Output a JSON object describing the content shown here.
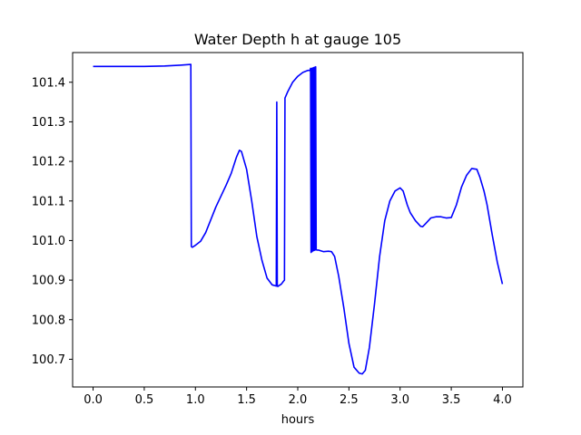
{
  "chart_data": {
    "type": "line",
    "title": "Water Depth h at gauge 105",
    "xlabel": "hours",
    "ylabel": "",
    "xlim": [
      -0.2,
      4.2
    ],
    "ylim": [
      100.63,
      101.475
    ],
    "xticks": [
      0.0,
      0.5,
      1.0,
      1.5,
      2.0,
      2.5,
      3.0,
      3.5,
      4.0
    ],
    "xtick_labels": [
      "0.0",
      "0.5",
      "1.0",
      "1.5",
      "2.0",
      "2.5",
      "3.0",
      "3.5",
      "4.0"
    ],
    "yticks": [
      100.7,
      100.8,
      100.9,
      101.0,
      101.1,
      101.2,
      101.3,
      101.4
    ],
    "ytick_labels": [
      "100.7",
      "100.8",
      "100.9",
      "101.0",
      "101.1",
      "101.2",
      "101.3",
      "101.4"
    ],
    "grid": false,
    "series": [
      {
        "color": "#0000ff",
        "x": [
          0.0,
          0.5,
          0.7,
          0.85,
          0.955,
          0.96,
          0.97,
          1.0,
          1.05,
          1.1,
          1.2,
          1.3,
          1.35,
          1.4,
          1.43,
          1.45,
          1.5,
          1.55,
          1.6,
          1.65,
          1.7,
          1.75,
          1.79,
          1.795,
          1.8,
          1.805,
          1.84,
          1.86,
          1.87,
          1.875,
          1.9,
          1.95,
          2.0,
          2.05,
          2.1,
          2.12,
          2.125,
          2.13,
          2.135,
          2.14,
          2.145,
          2.15,
          2.155,
          2.16,
          2.165,
          2.17,
          2.175,
          2.18,
          2.185,
          2.2,
          2.25,
          2.3,
          2.33,
          2.36,
          2.4,
          2.45,
          2.5,
          2.55,
          2.6,
          2.63,
          2.66,
          2.7,
          2.75,
          2.8,
          2.85,
          2.9,
          2.95,
          3.0,
          3.03,
          3.07,
          3.1,
          3.15,
          3.2,
          3.22,
          3.25,
          3.3,
          3.35,
          3.4,
          3.45,
          3.5,
          3.55,
          3.6,
          3.65,
          3.7,
          3.75,
          3.78,
          3.82,
          3.85,
          3.9,
          3.95,
          4.0
        ],
        "y": [
          101.44,
          101.44,
          101.441,
          101.443,
          101.445,
          100.985,
          100.983,
          100.988,
          100.998,
          101.02,
          101.085,
          101.14,
          101.17,
          101.21,
          101.228,
          101.225,
          101.18,
          101.1,
          101.01,
          100.95,
          100.905,
          100.888,
          100.885,
          101.35,
          100.885,
          100.884,
          100.89,
          100.897,
          100.9,
          101.36,
          101.375,
          101.4,
          101.415,
          101.425,
          101.43,
          101.43,
          101.435,
          100.97,
          101.435,
          100.972,
          101.436,
          100.974,
          101.437,
          100.975,
          101.438,
          100.976,
          101.439,
          100.977,
          100.976,
          100.976,
          100.972,
          100.973,
          100.972,
          100.96,
          100.91,
          100.83,
          100.74,
          100.68,
          100.665,
          100.663,
          100.672,
          100.73,
          100.84,
          100.96,
          101.05,
          101.1,
          101.125,
          101.133,
          101.125,
          101.09,
          101.07,
          101.05,
          101.036,
          101.035,
          101.043,
          101.057,
          101.06,
          101.06,
          101.057,
          101.058,
          101.09,
          101.135,
          101.165,
          101.182,
          101.18,
          101.16,
          101.125,
          101.09,
          101.015,
          100.945,
          100.89
        ]
      }
    ]
  }
}
